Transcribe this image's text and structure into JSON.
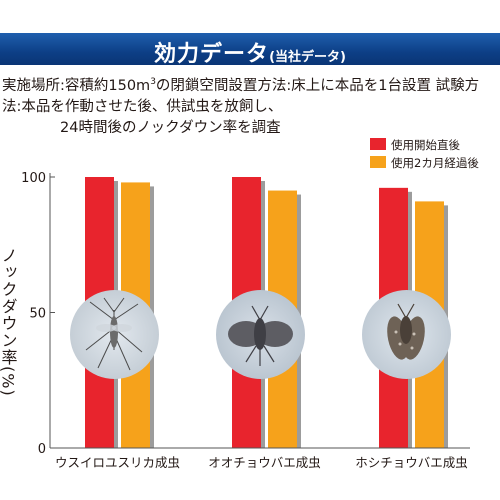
{
  "banner": {
    "title": "効力データ",
    "subtitle": "(当社データ)"
  },
  "method": {
    "line1": "実施場所:容積約150m",
    "superscript": "3",
    "line1_rest": "の閉鎖空間設置方法:床上に本品を1台設置 試験方",
    "line2": "法:本品を作動させた後、供試虫を放飼し、",
    "line3": "24時間後のノックダウン率を調査"
  },
  "colors": {
    "banner": "#1558a8",
    "series1": "#e8242d",
    "series2": "#f6a21b",
    "shadow": "#9c9c9c"
  },
  "insect_icons": [
    "mosquito-like-midge-icon",
    "moth-fly-icon",
    "small-moth-fly-icon"
  ],
  "chart_data": {
    "type": "bar",
    "ylabel": "ノックダウン率(%)",
    "ylim": [
      0,
      100
    ],
    "yticks": [
      0,
      50,
      100
    ],
    "categories": [
      "ウスイロユスリカ成虫",
      "オオチョウバエ成虫",
      "ホシチョウバエ成虫"
    ],
    "series": [
      {
        "name": "使用開始直後",
        "values": [
          100,
          100,
          96
        ]
      },
      {
        "name": "使用2カ月経過後",
        "values": [
          98,
          95,
          91
        ]
      }
    ],
    "legend_position": "top-right",
    "grid": false
  }
}
